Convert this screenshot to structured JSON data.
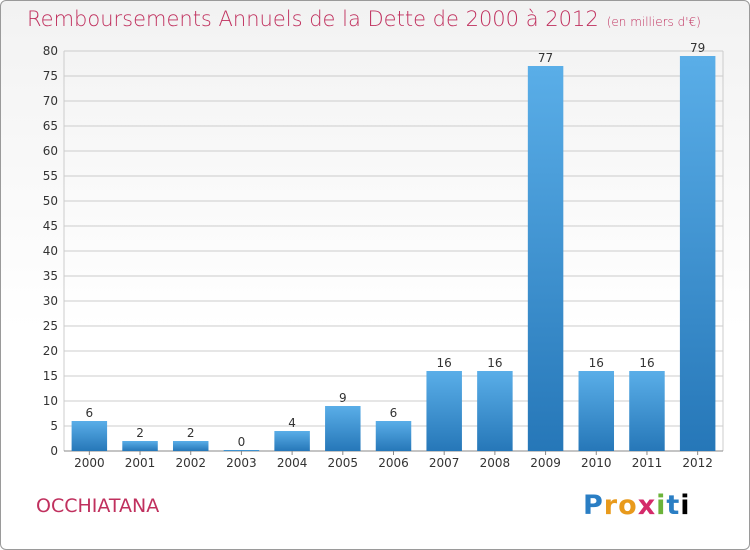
{
  "header": {
    "title": "Remboursements Annuels de la Dette de 2000 à 2012",
    "unit": "(en milliers d'€)"
  },
  "commune": "OCCHIATANA",
  "logo": {
    "letters": [
      "P",
      "r",
      "o",
      "x",
      "i",
      "t",
      "i"
    ]
  },
  "chart_data": {
    "type": "bar",
    "categories": [
      "2000",
      "2001",
      "2002",
      "2003",
      "2004",
      "2005",
      "2006",
      "2007",
      "2008",
      "2009",
      "2010",
      "2011",
      "2012"
    ],
    "values": [
      6,
      2,
      2,
      0,
      4,
      9,
      6,
      16,
      16,
      77,
      16,
      16,
      79
    ],
    "ylim": [
      0,
      80
    ],
    "yticks": [
      0,
      5,
      10,
      15,
      20,
      25,
      30,
      35,
      40,
      45,
      50,
      55,
      60,
      65,
      70,
      75,
      80
    ],
    "grid": true,
    "legend": "none",
    "colors": {
      "bar_top": "#5aaee8",
      "bar_bottom": "#2677b8",
      "grid": "#cccccc"
    }
  }
}
